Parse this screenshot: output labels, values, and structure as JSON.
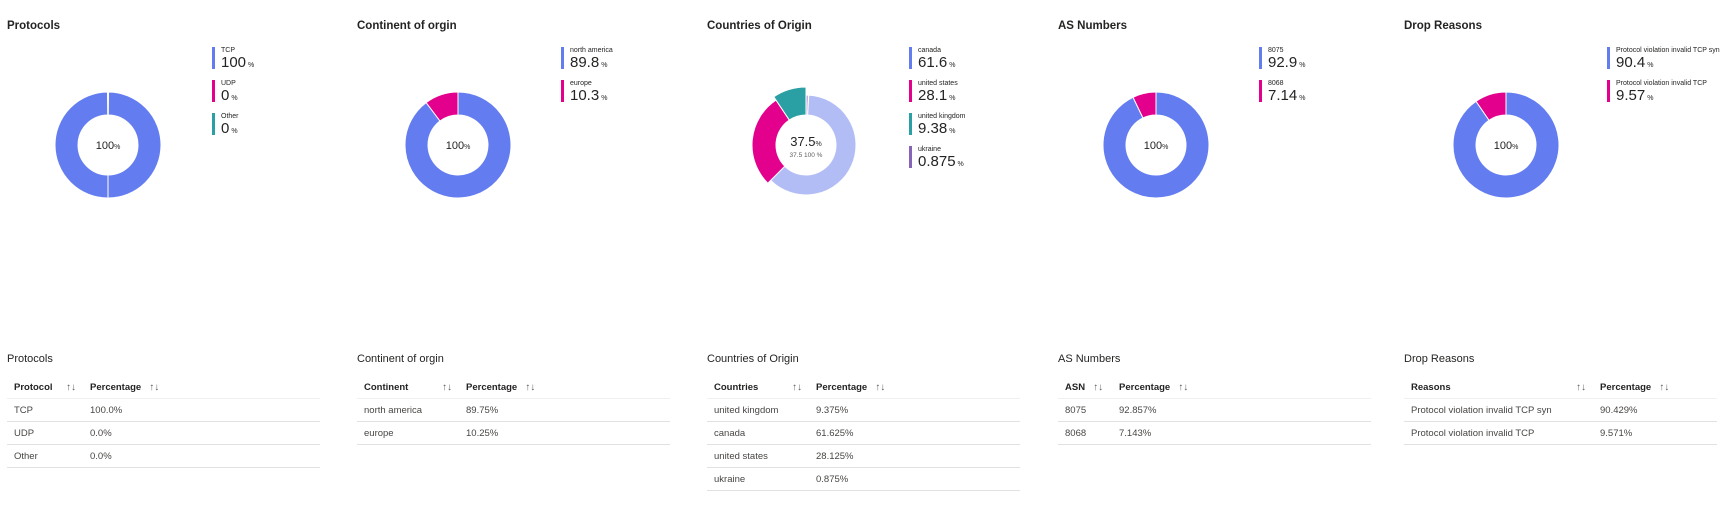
{
  "colors": {
    "blue": "#637cef",
    "pink": "#e3008c",
    "teal": "#2aa0a4",
    "purple": "#8764b8",
    "blue_faded": "#b3bdf5",
    "purple_faded": "#c3b0de"
  },
  "charts": [
    {
      "title": "Protocols",
      "center_value": "100",
      "center_unit": "%",
      "center_sub": "",
      "legend": [
        {
          "label": "TCP",
          "value": "100",
          "unit": "%",
          "color": "#637cef"
        },
        {
          "label": "UDP",
          "value": "0",
          "unit": "%",
          "color": "#e3008c"
        },
        {
          "label": "Other",
          "value": "0",
          "unit": "%",
          "color": "#2aa0a4"
        }
      ]
    },
    {
      "title": "Continent of orgin",
      "center_value": "100",
      "center_unit": "%",
      "center_sub": "",
      "legend": [
        {
          "label": "north america",
          "value": "89.8",
          "unit": "%",
          "color": "#637cef"
        },
        {
          "label": "europe",
          "value": "10.3",
          "unit": "%",
          "color": "#e3008c"
        }
      ]
    },
    {
      "title": "Countries of Origin",
      "center_value": "37.5",
      "center_unit": "%",
      "center_sub": "37.5 100 %",
      "legend": [
        {
          "label": "canada",
          "value": "61.6",
          "unit": "%",
          "color": "#637cef"
        },
        {
          "label": "united states",
          "value": "28.1",
          "unit": "%",
          "color": "#e3008c"
        },
        {
          "label": "united kingdom",
          "value": "9.38",
          "unit": "%",
          "color": "#2aa0a4"
        },
        {
          "label": "ukraine",
          "value": "0.875",
          "unit": "%",
          "color": "#8764b8"
        }
      ]
    },
    {
      "title": "AS Numbers",
      "center_value": "100",
      "center_unit": "%",
      "center_sub": "",
      "legend": [
        {
          "label": "8075",
          "value": "92.9",
          "unit": "%",
          "color": "#637cef"
        },
        {
          "label": "8068",
          "value": "7.14",
          "unit": "%",
          "color": "#e3008c"
        }
      ]
    },
    {
      "title": "Drop Reasons",
      "center_value": "100",
      "center_unit": "%",
      "center_sub": "",
      "legend": [
        {
          "label": "Protocol violation invalid TCP syn",
          "value": "90.4",
          "unit": "%",
          "color": "#637cef"
        },
        {
          "label": "Protocol violation invalid TCP",
          "value": "9.57",
          "unit": "%",
          "color": "#e3008c"
        }
      ]
    }
  ],
  "chart_data": [
    {
      "type": "pie",
      "title": "Protocols",
      "categories": [
        "TCP",
        "UDP",
        "Other"
      ],
      "values": [
        100,
        0,
        0
      ]
    },
    {
      "type": "pie",
      "title": "Continent of orgin",
      "categories": [
        "north america",
        "europe"
      ],
      "values": [
        89.75,
        10.25
      ]
    },
    {
      "type": "pie",
      "title": "Countries of Origin",
      "categories": [
        "canada",
        "united states",
        "united kingdom",
        "ukraine"
      ],
      "values": [
        61.625,
        28.125,
        9.375,
        0.875
      ],
      "highlighted": "canada"
    },
    {
      "type": "pie",
      "title": "AS Numbers",
      "categories": [
        "8075",
        "8068"
      ],
      "values": [
        92.857,
        7.143
      ]
    },
    {
      "type": "pie",
      "title": "Drop Reasons",
      "categories": [
        "Protocol violation invalid TCP syn",
        "Protocol violation invalid TCP"
      ],
      "values": [
        90.429,
        9.571
      ]
    }
  ],
  "tables": [
    {
      "title": "Protocols",
      "headers": [
        "Protocol",
        "Percentage"
      ],
      "sort_icon": "↑↓",
      "rows": [
        [
          "TCP",
          "100.0%"
        ],
        [
          "UDP",
          "0.0%"
        ],
        [
          "Other",
          "0.0%"
        ]
      ]
    },
    {
      "title": "Continent of orgin",
      "headers": [
        "Continent",
        "Percentage"
      ],
      "sort_icon": "↑↓",
      "rows": [
        [
          "north america",
          "89.75%"
        ],
        [
          "europe",
          "10.25%"
        ]
      ]
    },
    {
      "title": "Countries of Origin",
      "headers": [
        "Countries",
        "Percentage"
      ],
      "sort_icon": "↑↓",
      "rows": [
        [
          "united kingdom",
          "9.375%"
        ],
        [
          "canada",
          "61.625%"
        ],
        [
          "united states",
          "28.125%"
        ],
        [
          "ukraine",
          "0.875%"
        ]
      ]
    },
    {
      "title": "AS Numbers",
      "headers": [
        "ASN",
        "Percentage"
      ],
      "sort_icon": "↑↓",
      "rows": [
        [
          "8075",
          "92.857%"
        ],
        [
          "8068",
          "7.143%"
        ]
      ]
    },
    {
      "title": "Drop Reasons",
      "headers": [
        "Reasons",
        "Percentage"
      ],
      "sort_icon": "↑↓",
      "rows": [
        [
          "Protocol violation invalid TCP syn",
          "90.429%"
        ],
        [
          "Protocol violation invalid TCP",
          "9.571%"
        ]
      ]
    }
  ]
}
